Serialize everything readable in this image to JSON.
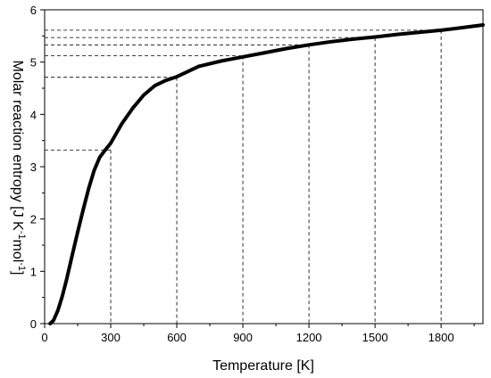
{
  "chart_data": {
    "type": "line",
    "xlabel": "Temperature [K]",
    "ylabel": "Molar reaction entropy [J K",
    "ylabel_sup1": "-1",
    "ylabel_mid": "mol",
    "ylabel_sup2": "-1",
    "ylabel_end": "]",
    "xlim": [
      0,
      1990
    ],
    "ylim": [
      0,
      6
    ],
    "xticks": [
      "0",
      "300",
      "600",
      "900",
      "1200",
      "1500",
      "1800"
    ],
    "yticks": [
      "0",
      "1",
      "2",
      "3",
      "4",
      "5",
      "6"
    ],
    "series": [
      {
        "x": [
          25,
          40,
          60,
          80,
          100,
          125,
          150,
          175,
          200,
          225,
          250,
          275,
          300,
          350,
          400,
          450,
          500,
          550,
          600,
          700,
          800,
          900,
          1000,
          1100,
          1200,
          1300,
          1400,
          1500,
          1600,
          1700,
          1800,
          1900,
          1990
        ],
        "y": [
          0.0,
          0.06,
          0.25,
          0.52,
          0.85,
          1.3,
          1.75,
          2.18,
          2.58,
          2.93,
          3.18,
          3.32,
          3.45,
          3.82,
          4.12,
          4.37,
          4.55,
          4.65,
          4.72,
          4.92,
          5.02,
          5.1,
          5.18,
          5.26,
          5.33,
          5.39,
          5.44,
          5.48,
          5.53,
          5.57,
          5.61,
          5.66,
          5.71
        ]
      }
    ],
    "reference_points": [
      {
        "x": 300,
        "y": 3.32
      },
      {
        "x": 600,
        "y": 4.71
      },
      {
        "x": 900,
        "y": 5.12
      },
      {
        "x": 1200,
        "y": 5.33
      },
      {
        "x": 1500,
        "y": 5.47
      },
      {
        "x": 1800,
        "y": 5.61
      }
    ],
    "grid": false,
    "legend": "none"
  }
}
